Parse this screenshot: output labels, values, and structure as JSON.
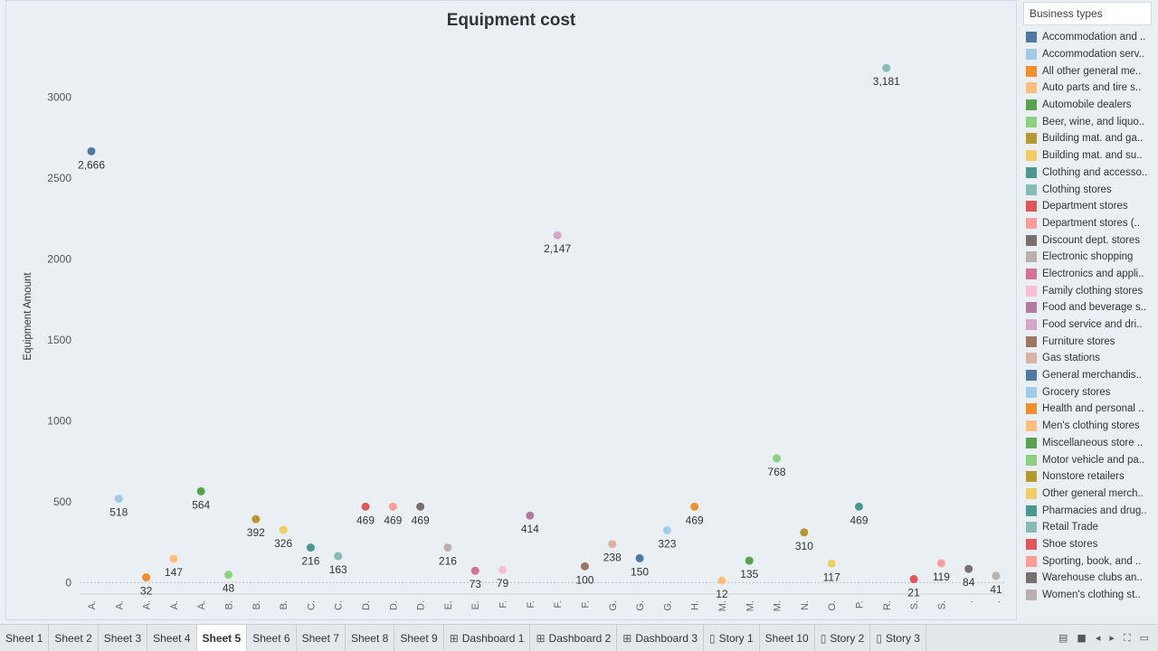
{
  "chart_data": {
    "type": "scatter",
    "title": "Equipment cost",
    "ylabel": "Equipment Amount",
    "xlabel": "",
    "ylim": [
      -60,
      3350
    ],
    "yticks": [
      0,
      500,
      1000,
      1500,
      2000,
      2500,
      3000
    ],
    "ytick_labels": [
      "0",
      "500",
      "1000",
      "1500",
      "2000",
      "2500",
      "3000"
    ],
    "grid": false,
    "legend_position": "right",
    "points": [
      {
        "x": "A.",
        "y": 2666,
        "label": "2,666",
        "color": "#4e79a7"
      },
      {
        "x": "A.",
        "y": 518,
        "label": "518",
        "color": "#a0cbe8"
      },
      {
        "x": "A.",
        "y": 32,
        "label": "32",
        "color": "#f28e2b"
      },
      {
        "x": "A.",
        "y": 147,
        "label": "147",
        "color": "#ffbe7d"
      },
      {
        "x": "A.",
        "y": 564,
        "label": "564",
        "color": "#59a14f"
      },
      {
        "x": "B.",
        "y": 48,
        "label": "48",
        "color": "#8cd17d"
      },
      {
        "x": "B.",
        "y": 392,
        "label": "392",
        "color": "#b6992d"
      },
      {
        "x": "B.",
        "y": 326,
        "label": "326",
        "color": "#f1ce63"
      },
      {
        "x": "C.",
        "y": 216,
        "label": "216",
        "color": "#499894"
      },
      {
        "x": "C.",
        "y": 163,
        "label": "163",
        "color": "#86bcb6"
      },
      {
        "x": "D.",
        "y": 469,
        "label": "469",
        "color": "#e15759"
      },
      {
        "x": "D.",
        "y": 469,
        "label": "469",
        "color": "#ff9d9a"
      },
      {
        "x": "D.",
        "y": 469,
        "label": "469",
        "color": "#79706e"
      },
      {
        "x": "E.",
        "y": 216,
        "label": "216",
        "color": "#bab0ac"
      },
      {
        "x": "E.",
        "y": 73,
        "label": "73",
        "color": "#d37295"
      },
      {
        "x": "F.",
        "y": 79,
        "label": "79",
        "color": "#fabfd2"
      },
      {
        "x": "F.",
        "y": 414,
        "label": "414",
        "color": "#b07aa1"
      },
      {
        "x": "F.",
        "y": 2147,
        "label": "2,147",
        "color": "#d4a6c8"
      },
      {
        "x": "F.",
        "y": 100,
        "label": "100",
        "color": "#9d7660"
      },
      {
        "x": "G.",
        "y": 238,
        "label": "238",
        "color": "#d7b5a6"
      },
      {
        "x": "G.",
        "y": 150,
        "label": "150",
        "color": "#4e79a7"
      },
      {
        "x": "G.",
        "y": 323,
        "label": "323",
        "color": "#a0cbe8"
      },
      {
        "x": "H.",
        "y": 469,
        "label": "469",
        "color": "#f28e2b"
      },
      {
        "x": "M.",
        "y": 12,
        "label": "12",
        "color": "#ffbe7d"
      },
      {
        "x": "M.",
        "y": 135,
        "label": "135",
        "color": "#59a14f"
      },
      {
        "x": "M.",
        "y": 768,
        "label": "768",
        "color": "#8cd17d"
      },
      {
        "x": "N.",
        "y": 310,
        "label": "310",
        "color": "#b6992d"
      },
      {
        "x": "O.",
        "y": 117,
        "label": "117",
        "color": "#f1ce63"
      },
      {
        "x": "P.",
        "y": 469,
        "label": "469",
        "color": "#499894"
      },
      {
        "x": "R.",
        "y": 3181,
        "label": "3,181",
        "color": "#86bcb6"
      },
      {
        "x": "S.",
        "y": 21,
        "label": "21",
        "color": "#e15759"
      },
      {
        "x": "S.",
        "y": 119,
        "label": "119",
        "color": "#ff9d9a"
      },
      {
        "x": ".",
        "y": 84,
        "label": "84",
        "color": "#79706e"
      },
      {
        "x": ".",
        "y": 41,
        "label": "41",
        "color": "#bab0ac"
      }
    ]
  },
  "legend": {
    "title": "Business types",
    "items": [
      {
        "label": "Accommodation and ..",
        "color": "#4e79a7"
      },
      {
        "label": "Accommodation serv..",
        "color": "#a0cbe8"
      },
      {
        "label": "All other general me..",
        "color": "#f28e2b"
      },
      {
        "label": "Auto parts and tire s..",
        "color": "#ffbe7d"
      },
      {
        "label": "Automobile dealers",
        "color": "#59a14f"
      },
      {
        "label": "Beer, wine, and liquo..",
        "color": "#8cd17d"
      },
      {
        "label": "Building mat. and ga..",
        "color": "#b6992d"
      },
      {
        "label": "Building mat. and su..",
        "color": "#f1ce63"
      },
      {
        "label": "Clothing and accesso..",
        "color": "#499894"
      },
      {
        "label": "Clothing stores",
        "color": "#86bcb6"
      },
      {
        "label": "Department stores",
        "color": "#e15759"
      },
      {
        "label": "Department stores (..",
        "color": "#ff9d9a"
      },
      {
        "label": "Discount dept. stores",
        "color": "#79706e"
      },
      {
        "label": "Electronic shopping",
        "color": "#bab0ac"
      },
      {
        "label": "Electronics and appli..",
        "color": "#d37295"
      },
      {
        "label": "Family clothing stores",
        "color": "#fabfd2"
      },
      {
        "label": "Food and beverage s..",
        "color": "#b07aa1"
      },
      {
        "label": "Food service and dri..",
        "color": "#d4a6c8"
      },
      {
        "label": "Furniture stores",
        "color": "#9d7660"
      },
      {
        "label": "Gas stations",
        "color": "#d7b5a6"
      },
      {
        "label": "General merchandis..",
        "color": "#4e79a7"
      },
      {
        "label": "Grocery stores",
        "color": "#a0cbe8"
      },
      {
        "label": "Health and personal ..",
        "color": "#f28e2b"
      },
      {
        "label": "Men's clothing stores",
        "color": "#ffbe7d"
      },
      {
        "label": "Miscellaneous store ..",
        "color": "#59a14f"
      },
      {
        "label": "Motor vehicle and pa..",
        "color": "#8cd17d"
      },
      {
        "label": "Nonstore retailers",
        "color": "#b6992d"
      },
      {
        "label": "Other general merch..",
        "color": "#f1ce63"
      },
      {
        "label": "Pharmacies and drug..",
        "color": "#499894"
      },
      {
        "label": "Retail Trade",
        "color": "#86bcb6"
      },
      {
        "label": "Shoe stores",
        "color": "#e15759"
      },
      {
        "label": "Sporting, book, and ..",
        "color": "#ff9d9a"
      },
      {
        "label": "Warehouse clubs an..",
        "color": "#79706e"
      },
      {
        "label": "Women's clothing st..",
        "color": "#bab0ac"
      }
    ]
  },
  "tabs": [
    {
      "label": "Sheet 1",
      "icon": "",
      "active": false
    },
    {
      "label": "Sheet 2",
      "icon": "",
      "active": false
    },
    {
      "label": "Sheet 3",
      "icon": "",
      "active": false
    },
    {
      "label": "Sheet 4",
      "icon": "",
      "active": false
    },
    {
      "label": "Sheet 5",
      "icon": "",
      "active": true
    },
    {
      "label": "Sheet 6",
      "icon": "",
      "active": false
    },
    {
      "label": "Sheet 7",
      "icon": "",
      "active": false
    },
    {
      "label": "Sheet 8",
      "icon": "",
      "active": false
    },
    {
      "label": "Sheet 9",
      "icon": "",
      "active": false
    },
    {
      "label": "Dashboard 1",
      "icon": "dashboard-icon",
      "active": false
    },
    {
      "label": "Dashboard 2",
      "icon": "dashboard-icon",
      "active": false
    },
    {
      "label": "Dashboard 3",
      "icon": "dashboard-icon",
      "active": false
    },
    {
      "label": "Story 1",
      "icon": "story-icon",
      "active": false
    },
    {
      "label": "Sheet 10",
      "icon": "",
      "active": false
    },
    {
      "label": "Story 2",
      "icon": "story-icon",
      "active": false
    },
    {
      "label": "Story 3",
      "icon": "story-icon",
      "active": false
    }
  ],
  "controls": [
    {
      "name": "show-filmstrip-icon",
      "glyph": "▤"
    },
    {
      "name": "show-sheet-sorter-icon",
      "glyph": "■"
    },
    {
      "name": "previous-sheet-icon",
      "glyph": "◂"
    },
    {
      "name": "next-sheet-icon",
      "glyph": "▸"
    },
    {
      "name": "fullscreen-icon",
      "glyph": "⛶"
    },
    {
      "name": "presentation-mode-icon",
      "glyph": "▭"
    }
  ]
}
